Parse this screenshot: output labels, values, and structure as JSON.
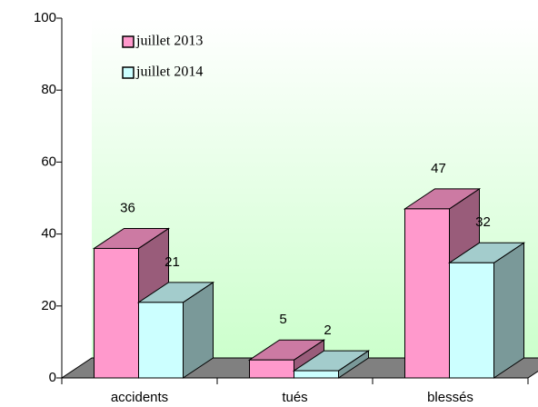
{
  "chart_data": {
    "type": "bar3d",
    "categories": [
      "accidents",
      "tués",
      "blessés"
    ],
    "series": [
      {
        "name": "juillet 2013",
        "color": "#ff99cc",
        "values": [
          36,
          5,
          47
        ]
      },
      {
        "name": "juillet 2014",
        "color": "#ccffff",
        "values": [
          21,
          2,
          32
        ]
      }
    ],
    "ylim": [
      0,
      100
    ],
    "yticks": [
      0,
      20,
      40,
      60,
      80,
      100
    ]
  }
}
